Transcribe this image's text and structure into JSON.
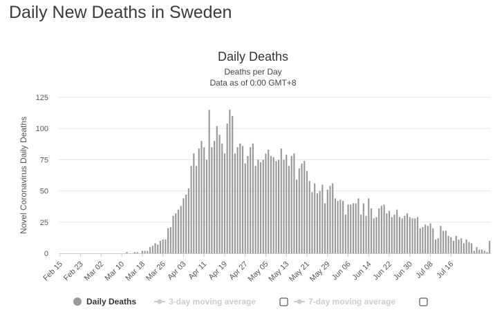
{
  "page": {
    "title": "Daily New Deaths in Sweden"
  },
  "chart_data": {
    "type": "bar",
    "title": "Daily Deaths",
    "subtitle_lines": [
      "Deaths per Day",
      "Data as of 0:00 GMT+8"
    ],
    "xlabel": "",
    "ylabel": "Novel Coronavirus Daily Deaths",
    "ylim": [
      0,
      125
    ],
    "y_ticks": [
      "0",
      "25",
      "50",
      "75",
      "100",
      "125"
    ],
    "x_tick_labels": [
      "Feb 15",
      "Feb 23",
      "Mar 02",
      "Mar 10",
      "Mar 18",
      "Mar 26",
      "Apr 03",
      "Apr 11",
      "Apr 19",
      "Apr 27",
      "May 05",
      "May 13",
      "May 21",
      "May 29",
      "Jun 06",
      "Jun 14",
      "Jun 22",
      "Jun 30",
      "Jul 08",
      "Jul 16"
    ],
    "grid": true,
    "legend_position": "bottom",
    "colors": {
      "bar": "#999999",
      "inactive": "#cccccc",
      "legend_active": "#333333"
    },
    "series": [
      {
        "name": "Daily Deaths",
        "x_start": "2020-02-15",
        "x_end": "2020-07-17",
        "values": [
          0,
          0,
          0,
          0,
          0,
          0,
          0,
          0,
          0,
          0,
          0,
          0,
          0,
          0,
          0,
          0,
          0,
          0,
          0,
          0,
          0,
          0,
          0,
          0,
          0,
          0,
          1,
          0,
          0,
          1,
          1,
          0,
          2,
          2,
          2,
          5,
          6,
          8,
          7,
          10,
          11,
          11,
          20,
          21,
          30,
          32,
          35,
          38,
          44,
          47,
          52,
          70,
          80,
          70,
          84,
          90,
          85,
          75,
          115,
          85,
          90,
          102,
          95,
          88,
          80,
          104,
          115,
          110,
          80,
          85,
          88,
          86,
          72,
          78,
          85,
          88,
          70,
          75,
          73,
          75,
          80,
          83,
          78,
          77,
          74,
          75,
          84,
          75,
          79,
          70,
          78,
          80,
          59,
          68,
          72,
          74,
          66,
          58,
          49,
          56,
          48,
          50,
          55,
          40,
          51,
          54,
          56,
          44,
          42,
          43,
          42,
          31,
          39,
          39,
          40,
          40,
          44,
          31,
          40,
          30,
          44,
          36,
          28,
          29,
          36,
          38,
          39,
          32,
          34,
          29,
          31,
          35,
          29,
          28,
          30,
          32,
          29,
          28,
          28,
          29,
          20,
          21,
          23,
          22,
          24,
          20,
          11,
          12,
          22,
          18,
          18,
          14,
          13,
          10,
          14,
          11,
          12,
          8,
          11,
          9,
          8,
          2,
          5,
          3,
          3,
          2,
          1,
          10
        ]
      },
      {
        "name": "3-day moving average"
      },
      {
        "name": "7-day moving average"
      }
    ]
  }
}
